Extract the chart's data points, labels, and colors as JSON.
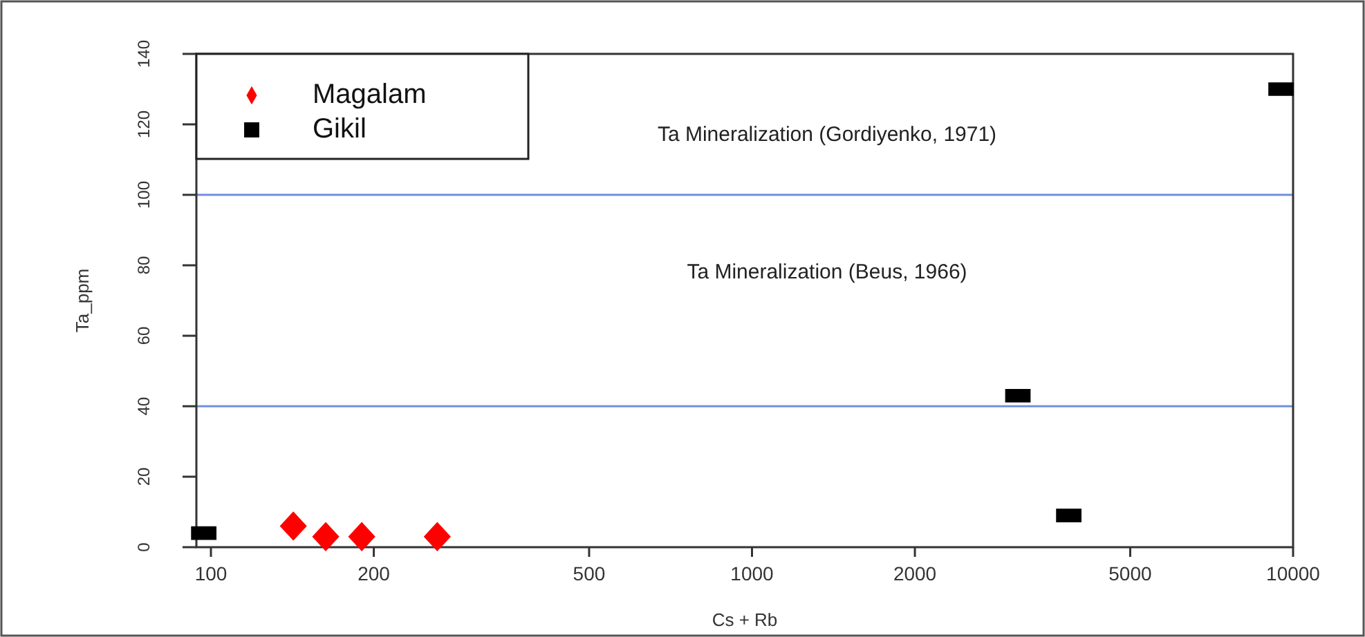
{
  "chart_data": {
    "type": "scatter",
    "xlabel": "Cs + Rb",
    "ylabel": "Ta_ppm",
    "log": "x",
    "xlim": [
      94,
      10000
    ],
    "xticks": [
      100,
      200,
      500,
      1000,
      2000,
      5000,
      10000
    ],
    "ylim": [
      0,
      140
    ],
    "yticks": [
      0,
      20,
      40,
      60,
      80,
      100,
      120,
      140
    ],
    "series": [
      {
        "name": "Magalam",
        "color": "#ff0000",
        "marker": "diamond",
        "x": [
          142,
          163,
          190,
          262
        ],
        "values": [
          6,
          3,
          3,
          3
        ]
      },
      {
        "name": "Gikil",
        "color": "#000000",
        "marker": "square",
        "x": [
          97,
          3100,
          3850,
          9500
        ],
        "values": [
          4,
          43,
          9,
          130
        ]
      }
    ],
    "ref_lines": [
      {
        "axis": "y",
        "value": 40,
        "color": "#6f8fdf"
      },
      {
        "axis": "y",
        "value": 100,
        "color": "#6f8fdf"
      }
    ],
    "annotations": [
      "Ta Mineralization (Beus, 1966)",
      "Ta Mineralization (Gordiyenko, 1971)"
    ],
    "grid": false,
    "legend": "top left"
  }
}
